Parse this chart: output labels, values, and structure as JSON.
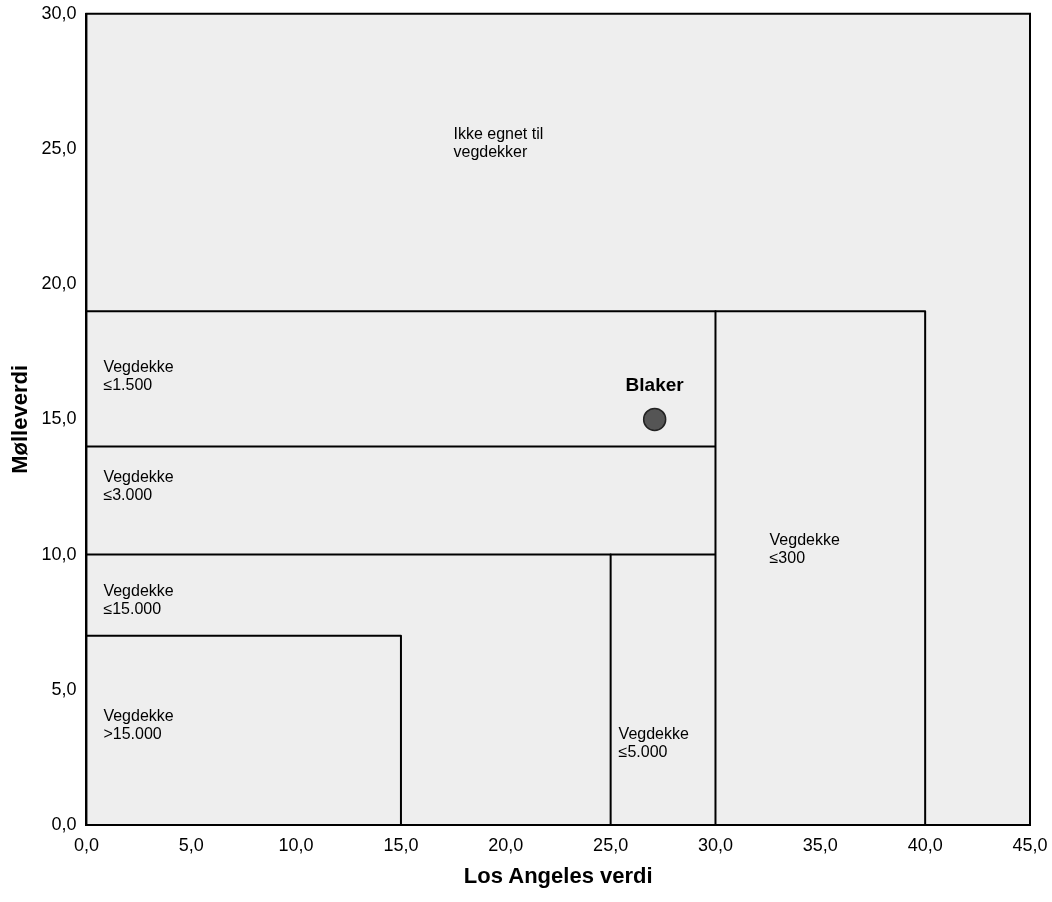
{
  "chart_data": {
    "type": "scatter",
    "xlabel": "Los Angeles verdi",
    "ylabel": "Mølleverdi",
    "xlim": [
      0,
      45
    ],
    "ylim": [
      0,
      30
    ],
    "xticks": [
      {
        "value": 0,
        "label": "0,0"
      },
      {
        "value": 5,
        "label": "5,0"
      },
      {
        "value": 10,
        "label": "10,0"
      },
      {
        "value": 15,
        "label": "15,0"
      },
      {
        "value": 20,
        "label": "20,0"
      },
      {
        "value": 25,
        "label": "25,0"
      },
      {
        "value": 30,
        "label": "30,0"
      },
      {
        "value": 35,
        "label": "35,0"
      },
      {
        "value": 40,
        "label": "40,0"
      },
      {
        "value": 45,
        "label": "45,0"
      }
    ],
    "yticks": [
      {
        "value": 0,
        "label": "0,0"
      },
      {
        "value": 5,
        "label": "5,0"
      },
      {
        "value": 10,
        "label": "10,0"
      },
      {
        "value": 15,
        "label": "15,0"
      },
      {
        "value": 20,
        "label": "20,0"
      },
      {
        "value": 25,
        "label": "25,0"
      },
      {
        "value": 30,
        "label": "30,0"
      }
    ],
    "grid": false,
    "legend": false,
    "marker": "circle",
    "series": [
      {
        "name": "Blaker",
        "type": "scatter",
        "color": "#555555",
        "x": [
          27.1
        ],
        "values": [
          15
        ]
      },
      {
        "type": "line",
        "color": "#000000",
        "marker": "none",
        "x": [
          0,
          40,
          40
        ],
        "values": [
          19,
          19,
          0
        ]
      },
      {
        "type": "line",
        "color": "#000000",
        "marker": "none",
        "x": [
          30,
          30
        ],
        "values": [
          19,
          0
        ]
      },
      {
        "type": "line",
        "color": "#000000",
        "marker": "none",
        "x": [
          0,
          30
        ],
        "values": [
          14,
          14
        ]
      },
      {
        "type": "line",
        "color": "#000000",
        "marker": "none",
        "x": [
          0,
          30
        ],
        "values": [
          10,
          10
        ]
      },
      {
        "type": "line",
        "color": "#000000",
        "marker": "none",
        "x": [
          25,
          25
        ],
        "values": [
          10,
          0
        ]
      },
      {
        "type": "line",
        "color": "#000000",
        "marker": "none",
        "x": [
          0,
          15,
          15
        ],
        "values": [
          7,
          7,
          0
        ]
      }
    ],
    "annotations": [
      "Ikke egnet til\nvegdekker",
      "Vegdekke\n≤1.500",
      "Vegdekke\n≤3.000",
      "Vegdekke\n≤15.000",
      "Vegdekke\n>15.000",
      "Vegdekke\n≤5.000",
      "Vegdekke\n≤300"
    ]
  }
}
